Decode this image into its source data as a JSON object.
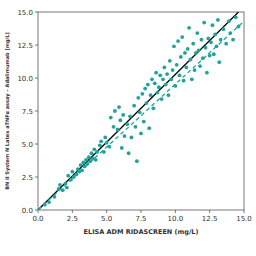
{
  "chart_data": {
    "type": "scatter",
    "x_label": "ELISA ADM RIDASCREEN (mg/L)",
    "y_label": "BN II System N Latex aTNFα assay – Adalimumab [mg/L]",
    "xlim": [
      0,
      15
    ],
    "ylim": [
      0,
      15
    ],
    "xticks": [
      {
        "value": 0,
        "label": "0.0"
      },
      {
        "value": 2.5,
        "label": "2.5"
      },
      {
        "value": 5,
        "label": "5.0"
      },
      {
        "value": 7.5,
        "label": "7.5"
      },
      {
        "value": 10,
        "label": "10.0"
      },
      {
        "value": 12.5,
        "label": "12.5"
      },
      {
        "value": 15,
        "label": "15.0"
      }
    ],
    "yticks": [
      {
        "value": 0,
        "label": "0.0"
      },
      {
        "value": 2.5,
        "label": "2.5"
      },
      {
        "value": 5,
        "label": "5.0"
      },
      {
        "value": 7.5,
        "label": "7.5"
      },
      {
        "value": 10,
        "label": "10.0"
      },
      {
        "value": 12.5,
        "label": "12.5"
      },
      {
        "value": 15,
        "label": "15.0"
      }
    ],
    "grid": false,
    "series": [
      {
        "type": "scatter",
        "color": "#1fa39a",
        "marker": "circle",
        "x": [
          0.5,
          0.8,
          1.2,
          1.5,
          1.6,
          1.8,
          2.0,
          2.1,
          2.2,
          2.4,
          2.5,
          2.6,
          2.8,
          2.9,
          3.0,
          3.1,
          3.2,
          3.3,
          3.4,
          3.5,
          3.6,
          3.7,
          3.8,
          3.9,
          4.0,
          4.1,
          4.2,
          4.3,
          4.5,
          4.6,
          4.8,
          4.9,
          5.0,
          5.2,
          5.3,
          5.5,
          5.6,
          5.8,
          5.9,
          6.0,
          6.1,
          6.2,
          6.3,
          6.5,
          6.6,
          6.7,
          6.8,
          7.0,
          7.1,
          7.2,
          7.3,
          7.4,
          7.5,
          7.6,
          7.7,
          7.8,
          7.9,
          8.0,
          8.1,
          8.2,
          8.3,
          8.4,
          8.5,
          8.6,
          8.7,
          8.8,
          8.9,
          9.0,
          9.1,
          9.2,
          9.3,
          9.4,
          9.5,
          9.6,
          9.7,
          9.8,
          9.9,
          10.0,
          10.1,
          10.2,
          10.3,
          10.4,
          10.5,
          10.6,
          10.7,
          10.8,
          10.9,
          11.0,
          11.1,
          11.2,
          11.3,
          11.4,
          11.5,
          11.6,
          11.7,
          11.8,
          11.9,
          12.0,
          12.1,
          12.2,
          12.3,
          12.4,
          12.5,
          12.6,
          12.7,
          12.8,
          12.9,
          13.0,
          13.1,
          13.2,
          13.3,
          13.5,
          13.7,
          13.9,
          14.0,
          14.2,
          14.4,
          14.6
        ],
        "values": [
          0.4,
          0.6,
          1.0,
          1.6,
          1.9,
          1.5,
          2.0,
          1.7,
          2.6,
          2.3,
          2.9,
          2.5,
          2.7,
          3.1,
          2.9,
          3.4,
          3.0,
          3.6,
          3.3,
          3.8,
          3.5,
          4.0,
          3.7,
          4.3,
          3.9,
          4.6,
          3.8,
          4.4,
          4.9,
          5.2,
          4.4,
          5.5,
          5.1,
          4.8,
          7.0,
          6.3,
          7.5,
          6.1,
          7.8,
          6.8,
          4.7,
          7.2,
          5.6,
          6.5,
          4.3,
          7.1,
          5.5,
          7.9,
          6.3,
          3.7,
          8.5,
          7.4,
          5.8,
          8.8,
          6.7,
          9.2,
          8.1,
          9.5,
          6.2,
          8.7,
          9.9,
          7.7,
          9.6,
          10.4,
          8.9,
          9.3,
          10.2,
          8.4,
          9.9,
          10.8,
          9.5,
          10.3,
          8.7,
          11.3,
          9.9,
          10.6,
          12.4,
          9.4,
          11.0,
          12.8,
          10.2,
          11.6,
          13.1,
          9.8,
          11.9,
          10.8,
          12.2,
          13.8,
          11.4,
          9.9,
          12.6,
          10.6,
          11.9,
          13.4,
          12.1,
          10.9,
          12.9,
          11.5,
          14.2,
          12.3,
          10.4,
          13.0,
          11.7,
          12.7,
          14.0,
          11.8,
          13.3,
          12.4,
          14.4,
          11.2,
          12.9,
          13.7,
          12.6,
          14.3,
          13.4,
          12.9,
          14.6,
          13.9
        ]
      },
      {
        "type": "line",
        "color": "#000000",
        "line_style": "solid",
        "x": [
          0,
          14.6
        ],
        "values": [
          0,
          15
        ]
      },
      {
        "type": "line",
        "color": "#1fa39a",
        "line_style": "dashed",
        "x": [
          0,
          15
        ],
        "values": [
          0,
          14.3
        ]
      }
    ]
  }
}
